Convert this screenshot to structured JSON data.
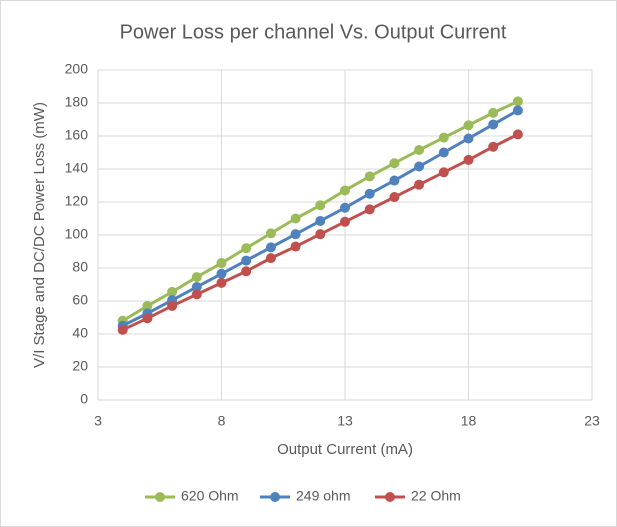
{
  "chart_data": {
    "type": "line",
    "title": "Power Loss per channel Vs. Output Current",
    "x_label": "Output Current (mA)",
    "y_label": "V/I Stage and DC/DC Power Loss (mW)",
    "x": [
      4,
      5,
      6,
      7,
      8,
      9,
      10,
      11,
      12,
      13,
      14,
      15,
      16,
      17,
      18,
      19,
      20
    ],
    "series": [
      {
        "name": "620 Ohm",
        "color": "#9bbb59",
        "values": [
          48,
          57,
          65.5,
          74.5,
          83,
          92,
          101,
          110,
          118,
          127,
          135.5,
          143.5,
          151.5,
          159,
          166.5,
          174,
          181
        ]
      },
      {
        "name": "249 ohm",
        "color": "#4f81bd",
        "values": [
          45,
          52.5,
          60.5,
          68.5,
          76.5,
          84.5,
          92.5,
          100.5,
          108.5,
          116.5,
          125,
          133,
          141.5,
          150,
          158.5,
          167,
          175.5
        ]
      },
      {
        "name": "22 Ohm",
        "color": "#c0504d",
        "values": [
          42.5,
          49.5,
          57,
          64,
          71,
          78,
          86,
          93,
          100.5,
          108,
          115.5,
          123,
          130.5,
          138,
          145.5,
          153.5,
          161
        ]
      }
    ],
    "xlim": [
      3,
      23
    ],
    "xticks": [
      3,
      8,
      13,
      18,
      23
    ],
    "ylim": [
      0,
      200
    ],
    "yticks": [
      0,
      20,
      40,
      60,
      80,
      100,
      120,
      140,
      160,
      180,
      200
    ],
    "grid": true,
    "legend": "bottom"
  }
}
